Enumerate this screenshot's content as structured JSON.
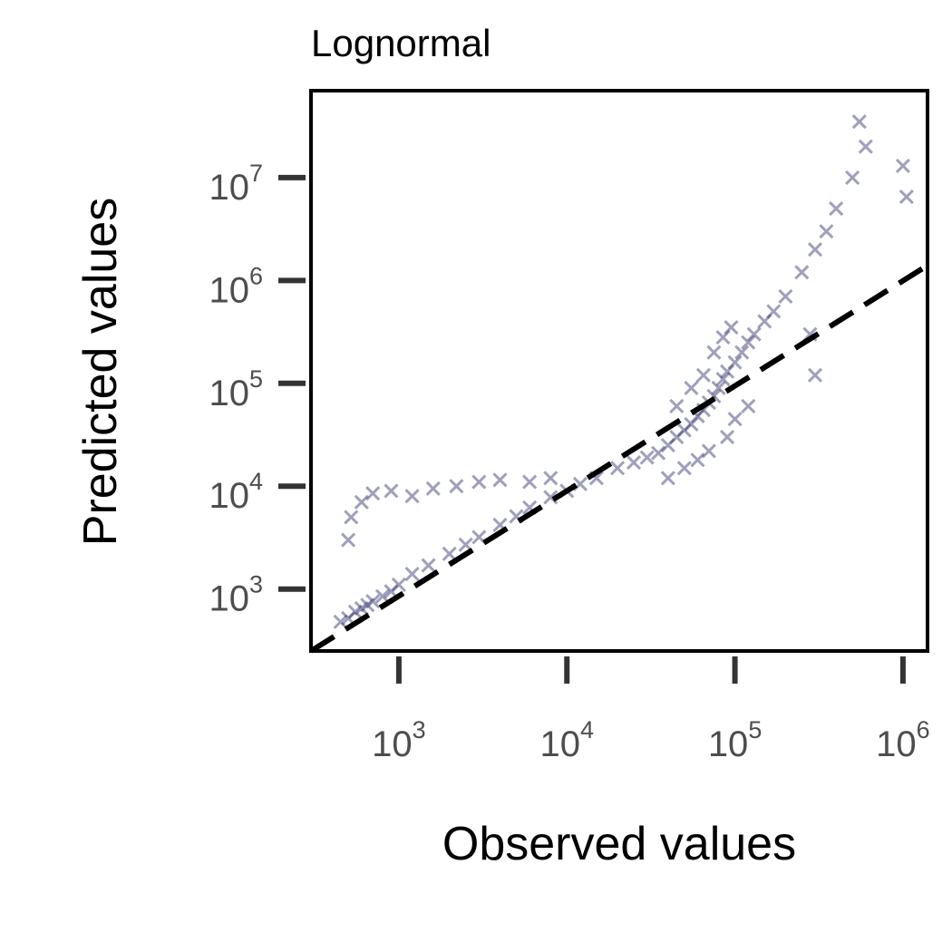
{
  "chart_data": {
    "type": "scatter",
    "title": "Lognormal",
    "xlabel": "Observed values",
    "ylabel": "Predicted values",
    "x_scale": "log",
    "y_scale": "log",
    "xlim": [
      300,
      1400000
    ],
    "ylim": [
      250,
      70000000
    ],
    "x_ticks": [
      {
        "value": 1000,
        "base": "10",
        "exp": "3"
      },
      {
        "value": 10000,
        "base": "10",
        "exp": "4"
      },
      {
        "value": 100000,
        "base": "10",
        "exp": "5"
      },
      {
        "value": 1000000,
        "base": "10",
        "exp": "6"
      }
    ],
    "y_ticks": [
      {
        "value": 1000,
        "base": "10",
        "exp": "3"
      },
      {
        "value": 10000,
        "base": "10",
        "exp": "4"
      },
      {
        "value": 100000,
        "base": "10",
        "exp": "5"
      },
      {
        "value": 1000000,
        "base": "10",
        "exp": "6"
      },
      {
        "value": 10000000,
        "base": "10",
        "exp": "7"
      }
    ],
    "marker": "x",
    "point_color": "#2b2d6b",
    "reference_line": {
      "style": "dashed",
      "color": "#000000",
      "points": [
        [
          300,
          250
        ],
        [
          1400000,
          1400000
        ]
      ]
    },
    "series": [
      {
        "values": [
          [
            450,
            480
          ],
          [
            500,
            520
          ],
          [
            550,
            600
          ],
          [
            600,
            650
          ],
          [
            650,
            700
          ],
          [
            700,
            760
          ],
          [
            800,
            850
          ],
          [
            900,
            950
          ],
          [
            1000,
            1100
          ],
          [
            1200,
            1400
          ],
          [
            1500,
            1700
          ],
          [
            2000,
            2200
          ],
          [
            2500,
            2700
          ],
          [
            3000,
            3200
          ],
          [
            4000,
            4200
          ],
          [
            5000,
            5100
          ],
          [
            6000,
            6200
          ],
          [
            8000,
            7800
          ],
          [
            10000,
            9000
          ],
          [
            12000,
            10500
          ],
          [
            15000,
            12000
          ],
          [
            20000,
            15000
          ],
          [
            25000,
            17000
          ],
          [
            30000,
            19000
          ],
          [
            35000,
            21000
          ],
          [
            40000,
            25000
          ],
          [
            45000,
            30000
          ],
          [
            50000,
            35000
          ],
          [
            55000,
            40000
          ],
          [
            60000,
            48000
          ],
          [
            65000,
            55000
          ],
          [
            70000,
            65000
          ],
          [
            75000,
            75000
          ],
          [
            80000,
            90000
          ],
          [
            85000,
            110000
          ],
          [
            90000,
            130000
          ],
          [
            100000,
            160000
          ],
          [
            110000,
            200000
          ],
          [
            120000,
            250000
          ],
          [
            130000,
            300000
          ],
          [
            150000,
            400000
          ],
          [
            170000,
            500000
          ],
          [
            200000,
            700000
          ],
          [
            250000,
            1200000
          ],
          [
            300000,
            2000000
          ],
          [
            350000,
            3000000
          ],
          [
            400000,
            5000000
          ],
          [
            500000,
            10000000
          ],
          [
            600000,
            20000000
          ],
          [
            550000,
            35000000
          ],
          [
            1000000,
            13000000
          ],
          [
            1050000,
            6500000
          ],
          [
            500,
            3000
          ],
          [
            520,
            5000
          ],
          [
            600,
            7000
          ],
          [
            700,
            8500
          ],
          [
            900,
            9000
          ],
          [
            1200,
            8000
          ],
          [
            1600,
            9500
          ],
          [
            2200,
            10000
          ],
          [
            3000,
            11000
          ],
          [
            4000,
            11500
          ],
          [
            6000,
            11000
          ],
          [
            8000,
            12000
          ],
          [
            40000,
            12000
          ],
          [
            50000,
            15000
          ],
          [
            60000,
            18000
          ],
          [
            70000,
            22000
          ],
          [
            90000,
            30000
          ],
          [
            100000,
            45000
          ],
          [
            120000,
            60000
          ],
          [
            45000,
            60000
          ],
          [
            55000,
            90000
          ],
          [
            65000,
            120000
          ],
          [
            75000,
            200000
          ],
          [
            85000,
            280000
          ],
          [
            95000,
            350000
          ],
          [
            300000,
            120000
          ],
          [
            280000,
            300000
          ]
        ]
      }
    ]
  }
}
